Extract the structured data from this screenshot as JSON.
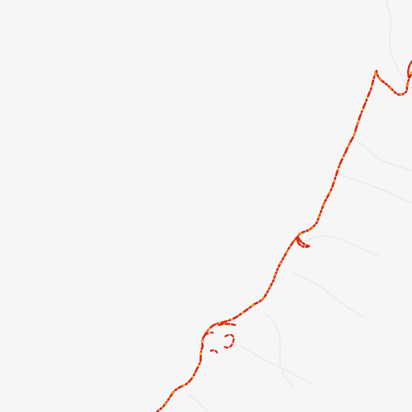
{
  "map": {
    "background_color": "#f6f6f6",
    "land_color": "#f7f7f7",
    "water_feature_color": "#efefef",
    "coastline_color": "#e02000",
    "coastline_highlight_color": "#ffcc00",
    "legend": null,
    "labels": []
  }
}
